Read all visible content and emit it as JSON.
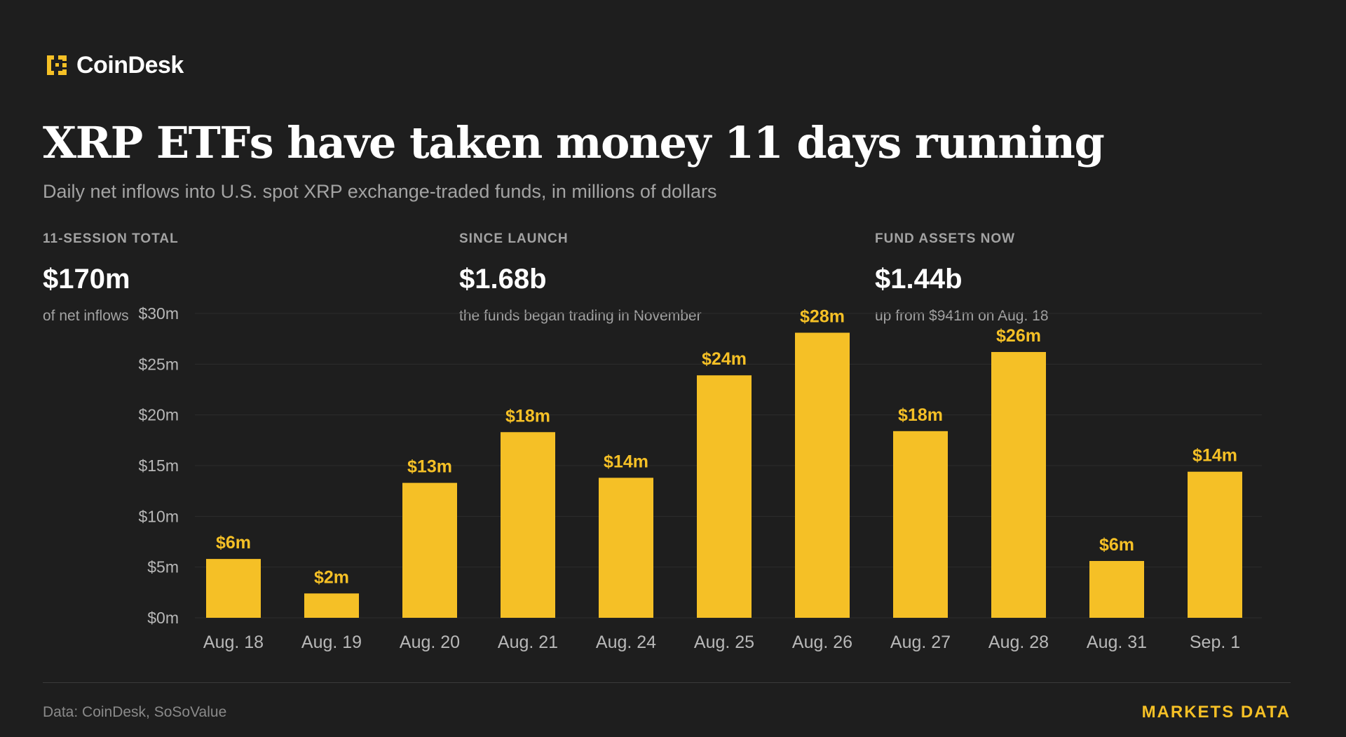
{
  "header": {
    "logo_text": "CoinDesk",
    "logo_icon": "coindesk-logo-icon",
    "title": "XRP ETFs have taken money 11 days running",
    "subtitle": "Daily net inflows into U.S. spot XRP exchange-traded funds, in millions of dollars"
  },
  "stats": [
    {
      "label": "11-SESSION TOTAL",
      "value": "$170m",
      "note": "of net inflows"
    },
    {
      "label": "SINCE LAUNCH",
      "value": "$1.68b",
      "note": "the funds began trading in November"
    },
    {
      "label": "FUND ASSETS NOW",
      "value": "$1.44b",
      "note": "up from $941m on Aug. 18"
    }
  ],
  "footer": {
    "source": "Data: CoinDesk, SoSoValue",
    "tag": "MARKETS DATA"
  },
  "colors": {
    "background": "#1e1e1e",
    "bar": "#f5c026",
    "bar_label": "#f5c026",
    "gridline": "#2c2c2c",
    "tick_text": "#b8b8b8",
    "brand_accent": "#f5c026"
  },
  "chart_data": {
    "type": "bar",
    "title": "",
    "xlabel": "",
    "ylabel": "",
    "categories": [
      "Aug. 18",
      "Aug. 19",
      "Aug. 20",
      "Aug. 21",
      "Aug. 24",
      "Aug. 25",
      "Aug. 26",
      "Aug. 27",
      "Aug. 28",
      "Aug. 31",
      "Sep. 1"
    ],
    "values": [
      5.8,
      2.4,
      13.3,
      18.3,
      13.8,
      23.9,
      28.1,
      18.4,
      26.2,
      5.6,
      14.4
    ],
    "value_labels": [
      "$6m",
      "$2m",
      "$13m",
      "$18m",
      "$14m",
      "$24m",
      "$28m",
      "$18m",
      "$26m",
      "$6m",
      "$14m"
    ],
    "ylim": [
      0,
      30
    ],
    "yticks": [
      0,
      5,
      10,
      15,
      20,
      25,
      30
    ],
    "ytick_labels": [
      "$0m",
      "$5m",
      "$10m",
      "$15m",
      "$20m",
      "$25m",
      "$30m"
    ],
    "grid": true,
    "legend": "none"
  }
}
